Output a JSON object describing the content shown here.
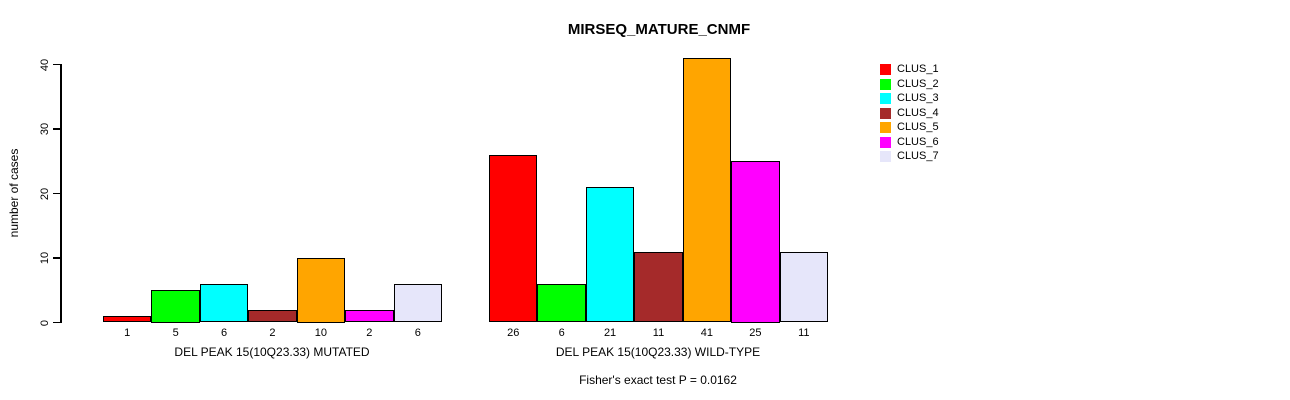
{
  "title": "MIRSEQ_MATURE_CNMF",
  "chart_data": {
    "type": "bar",
    "title": "MIRSEQ_MATURE_CNMF",
    "xlabel": "",
    "ylabel": "number of cases",
    "ylim": [
      0,
      40
    ],
    "yticks": [
      0,
      10,
      20,
      30,
      40
    ],
    "grid": false,
    "legend_position": "right",
    "series_labels": [
      "CLUS_1",
      "CLUS_2",
      "CLUS_3",
      "CLUS_4",
      "CLUS_5",
      "CLUS_6",
      "CLUS_7"
    ],
    "colors": [
      "#FF0000",
      "#00FF00",
      "#00FFFF",
      "#A52A2A",
      "#FFA500",
      "#FF00FF",
      "#E6E6FA"
    ],
    "groups": [
      {
        "label": "DEL PEAK 15(10Q23.33) MUTATED",
        "values": [
          1,
          5,
          6,
          2,
          10,
          2,
          6
        ]
      },
      {
        "label": "DEL PEAK 15(10Q23.33) WILD-TYPE",
        "values": [
          26,
          6,
          21,
          11,
          41,
          25,
          11
        ]
      }
    ],
    "annotation": "Fisher's exact test P = 0.0162"
  },
  "legend": {
    "items": [
      {
        "label": "CLUS_1",
        "color": "#FF0000"
      },
      {
        "label": "CLUS_2",
        "color": "#00FF00"
      },
      {
        "label": "CLUS_3",
        "color": "#00FFFF"
      },
      {
        "label": "CLUS_4",
        "color": "#A52A2A"
      },
      {
        "label": "CLUS_5",
        "color": "#FFA500"
      },
      {
        "label": "CLUS_6",
        "color": "#FF00FF"
      },
      {
        "label": "CLUS_7",
        "color": "#E6E6FA"
      }
    ]
  }
}
